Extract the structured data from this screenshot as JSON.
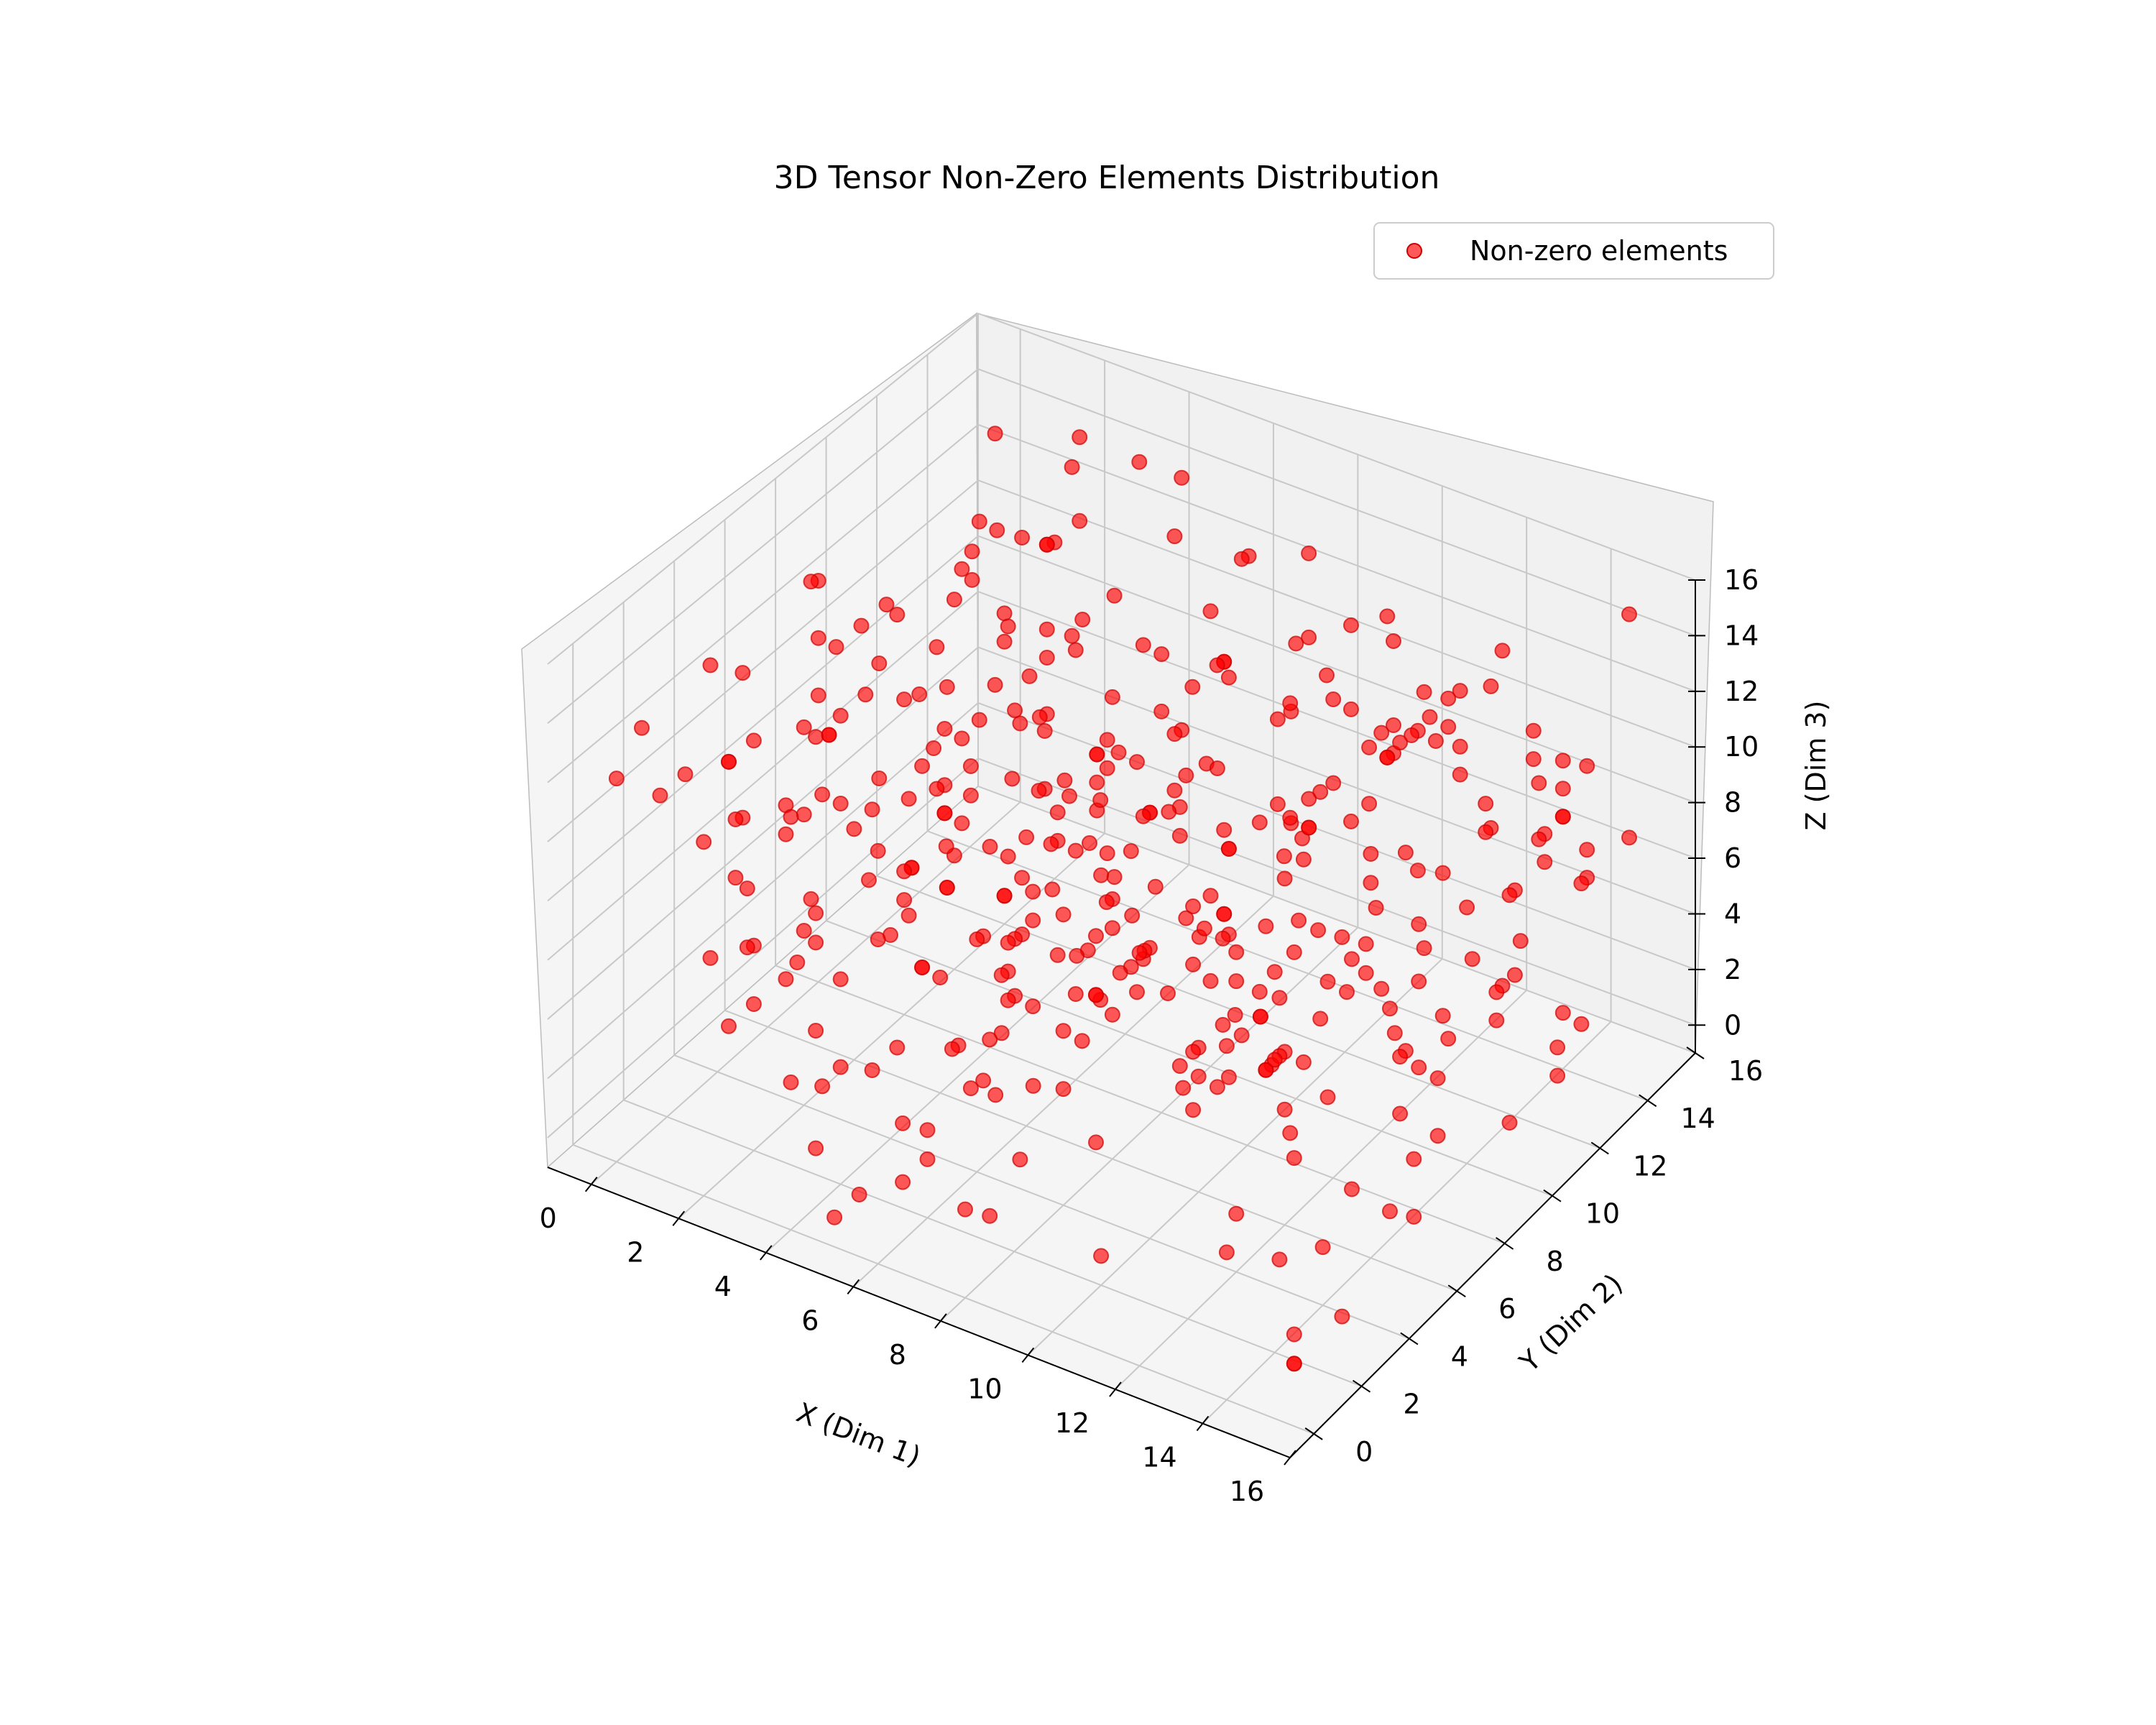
{
  "chart_data": {
    "type": "scatter",
    "projection": "3d",
    "title": "3D Tensor Non-Zero Elements Distribution",
    "xlabel": "X (Dim 1)",
    "ylabel": "Y (Dim 2)",
    "zlabel": "Z (Dim 3)",
    "xlim": [
      -1,
      16
    ],
    "ylim": [
      -1,
      16
    ],
    "zlim": [
      -1,
      16
    ],
    "xticks": [
      "0",
      "2",
      "4",
      "6",
      "8",
      "10",
      "12",
      "14",
      "16"
    ],
    "yticks": [
      "0",
      "2",
      "4",
      "6",
      "8",
      "10",
      "12",
      "14",
      "16"
    ],
    "zticks": [
      "0",
      "2",
      "4",
      "6",
      "8",
      "10",
      "12",
      "14",
      "16"
    ],
    "grid": true,
    "legend_position": "top-right",
    "series": [
      {
        "name": "Non-zero elements",
        "color": "#ff0000",
        "alpha": 0.65,
        "marker": "circle",
        "count": 400
      }
    ]
  }
}
